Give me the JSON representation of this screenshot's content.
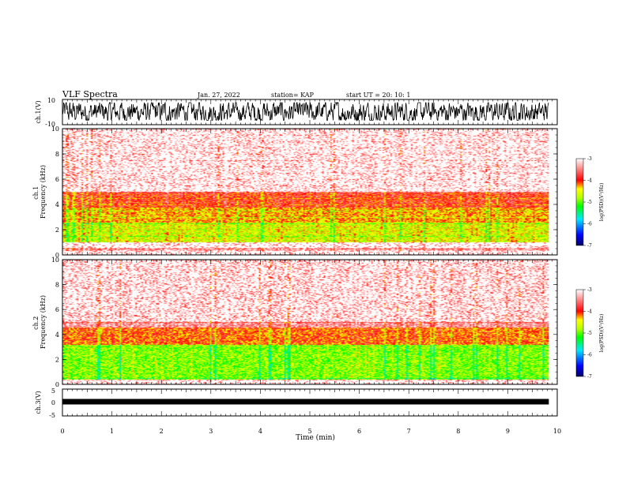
{
  "header": {
    "title": "VLF Spectra",
    "date": "Jan. 27, 2022",
    "station": "station= KAP",
    "start": "start  UT =   20: 10: 1"
  },
  "chart_data": [
    {
      "type": "line",
      "panel": "ch1-waveform",
      "ylabel": "ch.1(V)",
      "ylim": [
        -10,
        10
      ],
      "yticks": [
        10,
        -10
      ],
      "x_range_min": [
        0,
        9.83
      ],
      "description_values": "dense broadband noise signal oscillating roughly between -6 and +7 V"
    },
    {
      "type": "heatmap",
      "panel": "ch1-spectrogram",
      "ylabel": "ch.1\nFrequency  (kHz)",
      "ylim": [
        0,
        10
      ],
      "yticks": [
        0,
        2,
        4,
        6,
        8,
        10
      ],
      "x_range_min": [
        0,
        9.83
      ],
      "gap_khz": [
        0.6,
        1.0
      ],
      "bands": [
        {
          "from_khz": 1.0,
          "to_khz": 2.6,
          "level": -4.6
        },
        {
          "from_khz": 2.6,
          "to_khz": 3.8,
          "level": -4.3
        },
        {
          "from_khz": 3.8,
          "to_khz": 5.0,
          "level": -3.9
        },
        {
          "from_khz": 5.0,
          "to_khz": 10.0,
          "level": -3.3
        }
      ],
      "colorbar": {
        "label": "log(PSD)(V²/Hz)",
        "ticks": [
          -3,
          -4,
          -5,
          -6,
          -7
        ],
        "range": [
          -7,
          -3
        ]
      }
    },
    {
      "type": "heatmap",
      "panel": "ch2-spectrogram",
      "ylabel": "ch.2\nFrequency  (kHz)",
      "ylim": [
        0,
        10
      ],
      "yticks": [
        0,
        2,
        4,
        6,
        8,
        10
      ],
      "x_range_min": [
        0,
        9.83
      ],
      "bands": [
        {
          "from_khz": 0.4,
          "to_khz": 3.2,
          "level": -4.9
        },
        {
          "from_khz": 3.2,
          "to_khz": 4.6,
          "level": -4.1
        },
        {
          "from_khz": 4.6,
          "to_khz": 10.0,
          "level": -3.4
        }
      ],
      "colorbar": {
        "label": "log(PSD)(V²/Hz)",
        "ticks": [
          -3,
          -4,
          -5,
          -6,
          -7
        ],
        "range": [
          -7,
          -3
        ]
      }
    },
    {
      "type": "line",
      "panel": "ch3-waveform",
      "ylabel": "ch.3(V)",
      "ylim": [
        -5,
        5
      ],
      "yticks": [
        5,
        0,
        -5
      ],
      "x_range_min": [
        0,
        9.83
      ],
      "level_v": 0.3
    }
  ],
  "xaxis": {
    "label": "Time  (min)",
    "ticks": [
      "0",
      "1",
      "2",
      "3",
      "4",
      "5",
      "6",
      "7",
      "8",
      "9",
      "10"
    ],
    "range": [
      0,
      10
    ]
  },
  "colors": {
    "waveform": "#000000",
    "colormap": [
      "#000080",
      "#0000ff",
      "#00ffff",
      "#00ff00",
      "#ffff00",
      "#ff0000",
      "#ffffff"
    ]
  }
}
